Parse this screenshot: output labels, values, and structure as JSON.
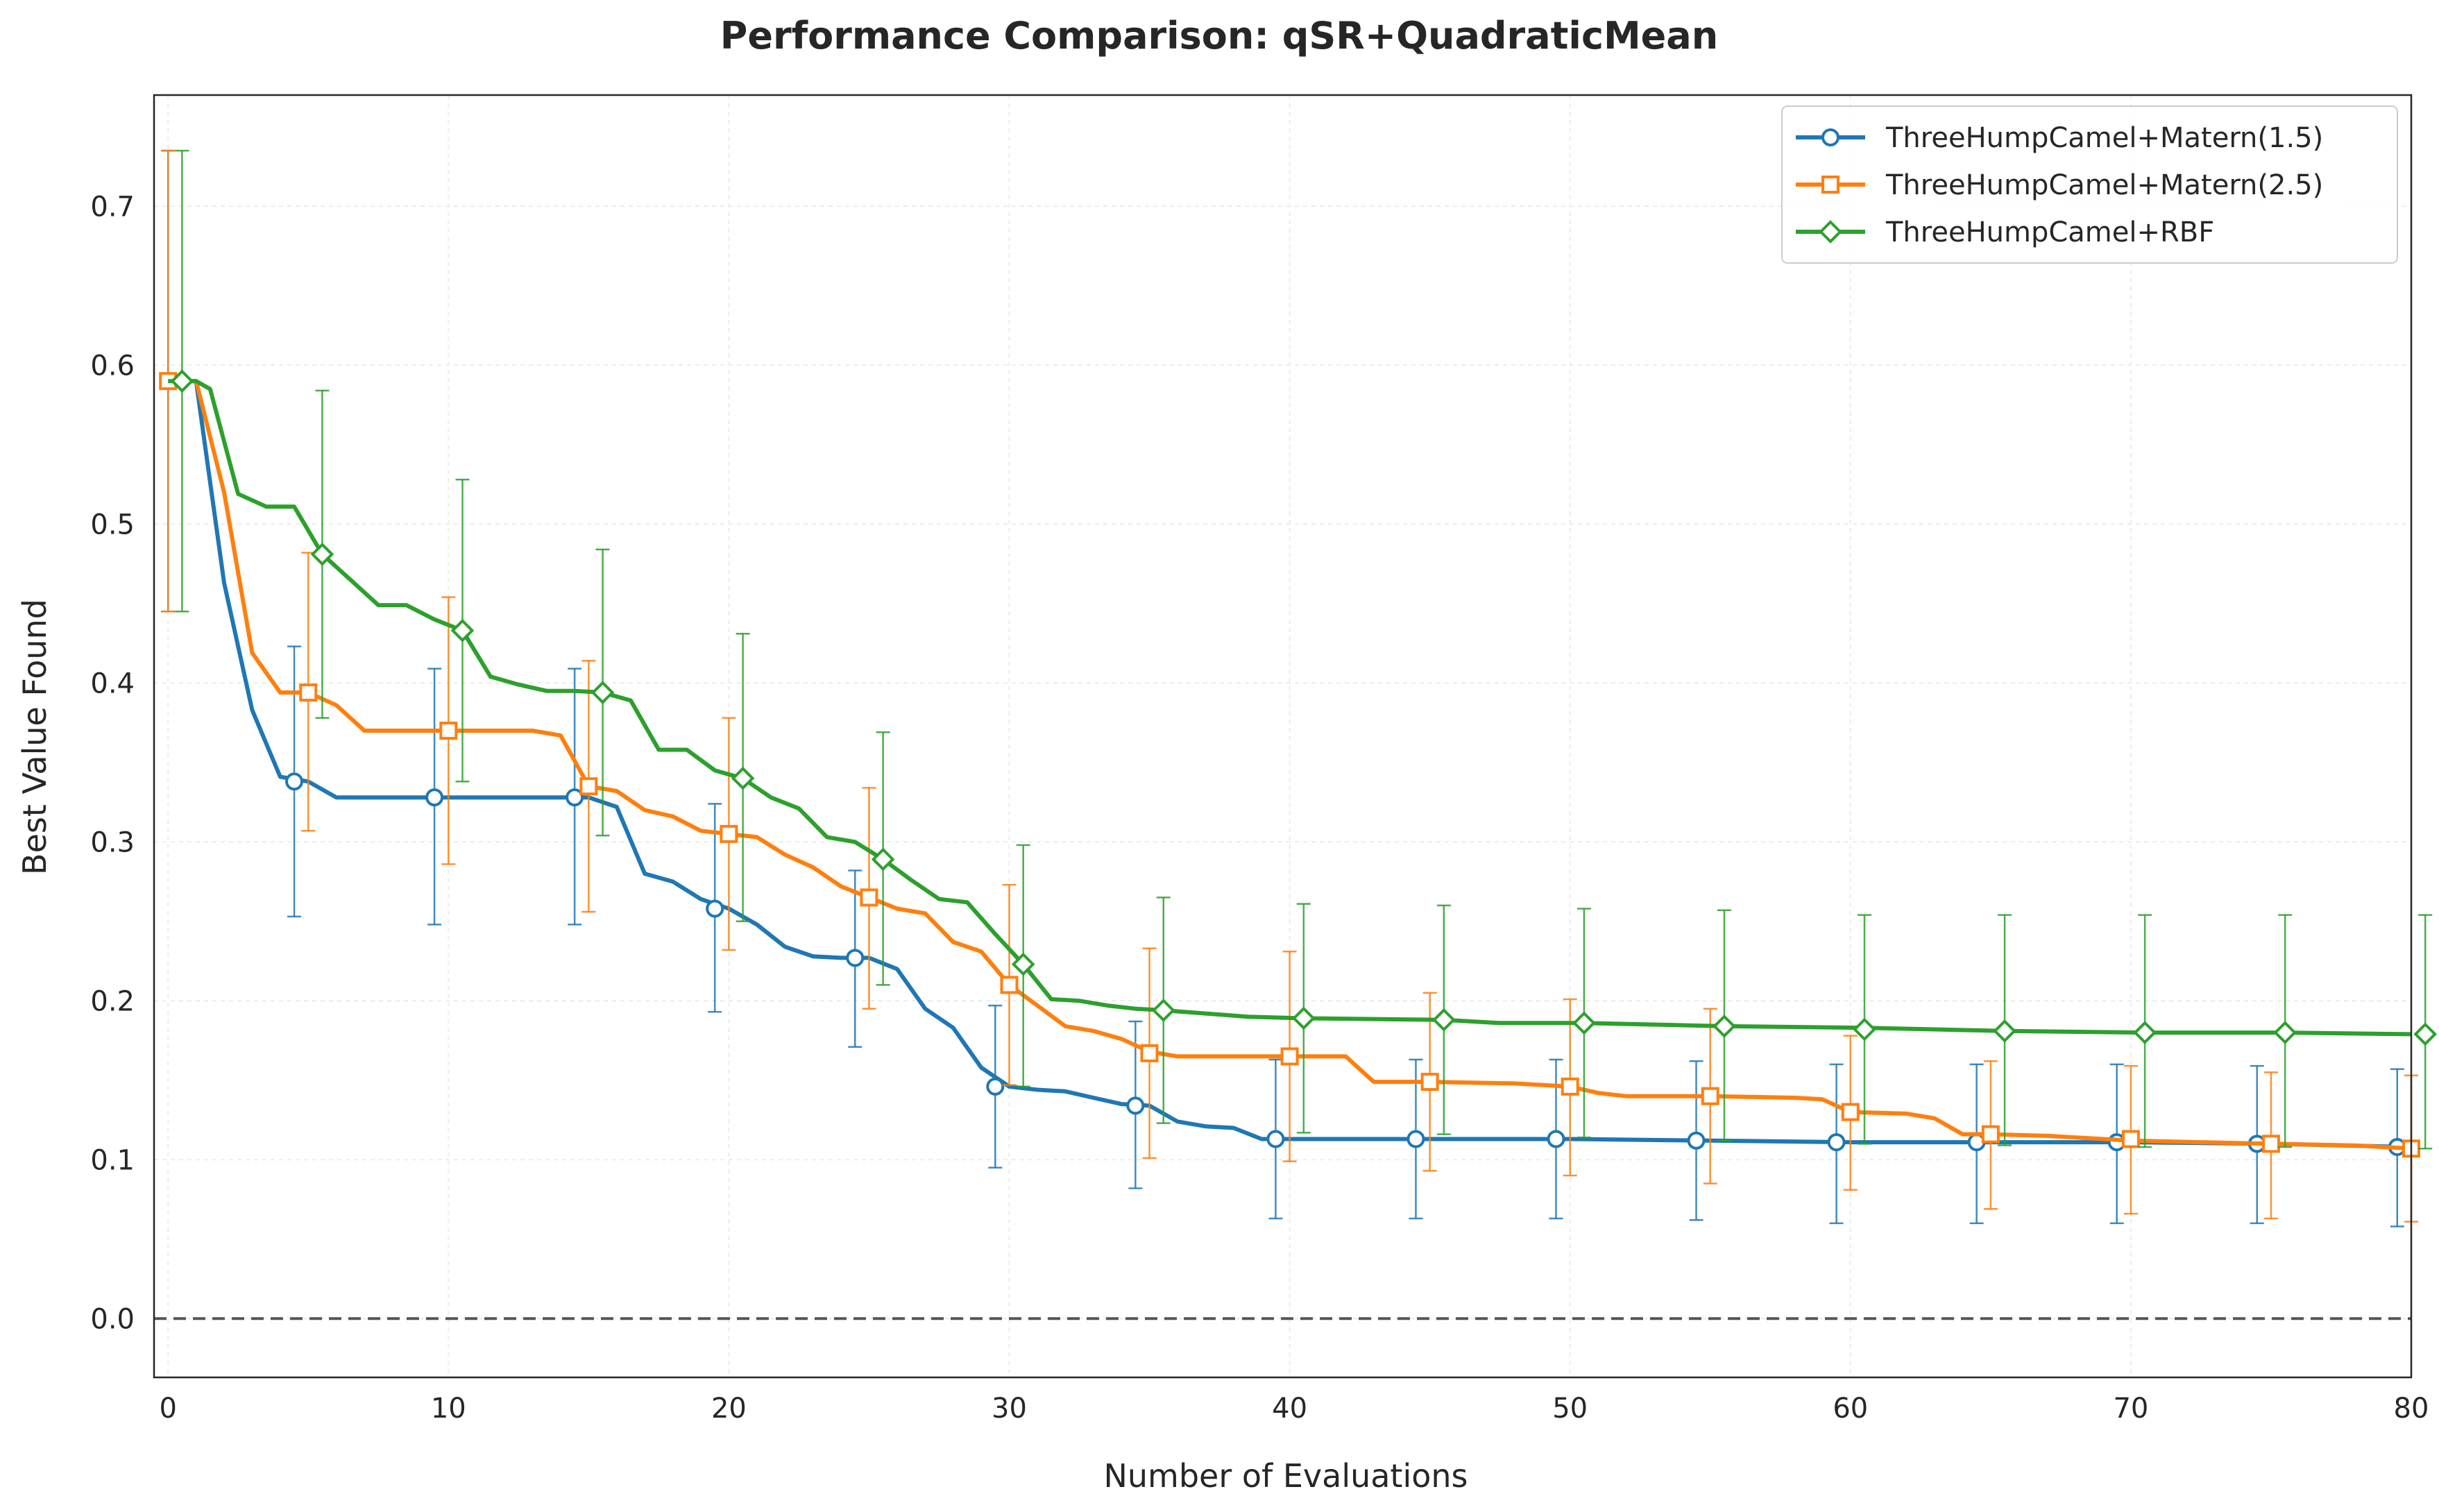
{
  "chart_data": {
    "type": "line",
    "title": "Performance Comparison: qSR+QuadraticMean",
    "xlabel": "Number of Evaluations",
    "ylabel": "Best Value Found",
    "xlim": [
      -0.5,
      80
    ],
    "ylim": [
      -0.037,
      0.77
    ],
    "xticks": [
      0,
      10,
      20,
      30,
      40,
      50,
      60,
      70,
      80
    ],
    "xtick_labels": [
      "0",
      "10",
      "20",
      "30",
      "40",
      "50",
      "60",
      "70",
      "80"
    ],
    "yticks": [
      0.0,
      0.1,
      0.2,
      0.3,
      0.4,
      0.5,
      0.6,
      0.7
    ],
    "ytick_labels": [
      "0.0",
      "0.1",
      "0.2",
      "0.3",
      "0.4",
      "0.5",
      "0.6",
      "0.7"
    ],
    "grid": true,
    "legend_position": "top-right",
    "reference_line": {
      "y": 0.0,
      "style": "dashed",
      "color": "#555555"
    },
    "series": [
      {
        "name": "ThreeHumpCamel+Matern(1.5)",
        "color": "#1f77b4",
        "marker": "circle",
        "x": [
          0,
          1,
          2,
          3,
          4,
          5,
          6,
          7,
          8,
          9,
          10,
          11,
          12,
          13,
          14,
          15,
          16,
          17,
          18,
          19,
          20,
          21,
          22,
          23,
          24,
          25,
          26,
          27,
          28,
          29,
          30,
          31,
          32,
          33,
          34,
          35,
          36,
          37,
          38,
          39,
          40,
          45,
          50,
          55,
          60,
          65,
          70,
          75,
          80
        ],
        "y": [
          0.59,
          0.59,
          0.463,
          0.383,
          0.341,
          0.338,
          0.328,
          0.328,
          0.328,
          0.328,
          0.328,
          0.328,
          0.328,
          0.328,
          0.328,
          0.328,
          0.322,
          0.28,
          0.275,
          0.264,
          0.258,
          0.248,
          0.234,
          0.228,
          0.227,
          0.227,
          0.22,
          0.195,
          0.183,
          0.158,
          0.146,
          0.144,
          0.143,
          0.139,
          0.135,
          0.134,
          0.124,
          0.121,
          0.12,
          0.113,
          0.113,
          0.113,
          0.113,
          0.112,
          0.111,
          0.111,
          0.111,
          0.11,
          0.108
        ],
        "marker_x": [
          0,
          4.5,
          9.5,
          14.5,
          19.5,
          24.5,
          29.5,
          34.5,
          39.5,
          44.5,
          49.5,
          54.5,
          59.5,
          64.5,
          69.5,
          74.5,
          79.5
        ],
        "marker_y": [
          0.59,
          0.338,
          0.328,
          0.328,
          0.258,
          0.227,
          0.146,
          0.134,
          0.113,
          0.113,
          0.113,
          0.112,
          0.111,
          0.111,
          0.111,
          0.11,
          0.108
        ],
        "err_low": [
          0.445,
          0.253,
          0.248,
          0.248,
          0.193,
          0.171,
          0.095,
          0.082,
          0.063,
          0.063,
          0.063,
          0.062,
          0.06,
          0.06,
          0.06,
          0.06,
          0.058
        ],
        "err_high": [
          0.735,
          0.423,
          0.409,
          0.409,
          0.324,
          0.282,
          0.197,
          0.187,
          0.163,
          0.163,
          0.163,
          0.162,
          0.16,
          0.16,
          0.16,
          0.159,
          0.157
        ]
      },
      {
        "name": "ThreeHumpCamel+Matern(2.5)",
        "color": "#ff7f0e",
        "marker": "square",
        "x": [
          0,
          1,
          2,
          3,
          4,
          5,
          6,
          7,
          8,
          9,
          10,
          11,
          12,
          13,
          14,
          15,
          16,
          17,
          18,
          19,
          20,
          21,
          22,
          23,
          24,
          25,
          26,
          27,
          28,
          29,
          30,
          31,
          32,
          33,
          34,
          35,
          36,
          40,
          42,
          43,
          45,
          48,
          50,
          51,
          52,
          55,
          58,
          59,
          60,
          62,
          63,
          64,
          65,
          67,
          70,
          75,
          78,
          80
        ],
        "y": [
          0.59,
          0.59,
          0.52,
          0.419,
          0.394,
          0.394,
          0.386,
          0.37,
          0.37,
          0.37,
          0.37,
          0.37,
          0.37,
          0.37,
          0.367,
          0.335,
          0.332,
          0.32,
          0.316,
          0.307,
          0.305,
          0.303,
          0.292,
          0.284,
          0.272,
          0.265,
          0.258,
          0.255,
          0.237,
          0.231,
          0.21,
          0.197,
          0.184,
          0.181,
          0.176,
          0.168,
          0.165,
          0.165,
          0.165,
          0.149,
          0.149,
          0.148,
          0.146,
          0.142,
          0.14,
          0.14,
          0.139,
          0.138,
          0.13,
          0.129,
          0.126,
          0.116,
          0.116,
          0.115,
          0.112,
          0.11,
          0.109,
          0.107
        ],
        "marker_x": [
          0,
          5,
          10,
          15,
          20,
          25,
          30,
          35,
          40,
          45,
          50,
          55,
          60,
          65,
          70,
          75,
          80
        ],
        "marker_y": [
          0.59,
          0.394,
          0.37,
          0.335,
          0.305,
          0.265,
          0.21,
          0.167,
          0.165,
          0.149,
          0.146,
          0.14,
          0.13,
          0.116,
          0.113,
          0.11,
          0.107
        ],
        "err_low": [
          0.445,
          0.307,
          0.286,
          0.256,
          0.232,
          0.195,
          0.147,
          0.101,
          0.099,
          0.093,
          0.09,
          0.085,
          0.081,
          0.069,
          0.066,
          0.063,
          0.061
        ],
        "err_high": [
          0.735,
          0.482,
          0.454,
          0.414,
          0.378,
          0.334,
          0.273,
          0.233,
          0.231,
          0.205,
          0.201,
          0.195,
          0.178,
          0.162,
          0.159,
          0.155,
          0.153
        ]
      },
      {
        "name": "ThreeHumpCamel+RBF",
        "color": "#2ca02c",
        "marker": "diamond",
        "x": [
          0,
          1,
          1.5,
          2.5,
          3.5,
          4.5,
          5.5,
          6.5,
          7.5,
          8.5,
          9.5,
          10.5,
          11.5,
          12.5,
          13.5,
          14.5,
          15.5,
          16.5,
          17.5,
          18.5,
          19.5,
          20.5,
          21.5,
          22.5,
          23.5,
          24.5,
          25.5,
          26.5,
          27.5,
          28.5,
          29.5,
          30.5,
          31.5,
          32.5,
          33.5,
          34.5,
          35.5,
          38.5,
          40.5,
          45.5,
          47.5,
          50.5,
          55.5,
          60.5,
          65.5,
          70.5,
          75.5,
          80
        ],
        "y": [
          0.59,
          0.59,
          0.585,
          0.519,
          0.511,
          0.511,
          0.481,
          0.465,
          0.449,
          0.449,
          0.44,
          0.433,
          0.404,
          0.399,
          0.395,
          0.395,
          0.394,
          0.389,
          0.358,
          0.358,
          0.345,
          0.34,
          0.328,
          0.321,
          0.303,
          0.3,
          0.289,
          0.276,
          0.264,
          0.262,
          0.242,
          0.223,
          0.201,
          0.2,
          0.197,
          0.195,
          0.194,
          0.19,
          0.189,
          0.188,
          0.186,
          0.186,
          0.184,
          0.183,
          0.181,
          0.18,
          0.18,
          0.179
        ],
        "marker_x": [
          0.5,
          5.5,
          10.5,
          15.5,
          20.5,
          25.5,
          30.5,
          35.5,
          40.5,
          45.5,
          50.5,
          55.5,
          60.5,
          65.5,
          70.5,
          75.5,
          80.5
        ],
        "marker_y": [
          0.59,
          0.481,
          0.433,
          0.394,
          0.34,
          0.289,
          0.223,
          0.194,
          0.189,
          0.188,
          0.186,
          0.184,
          0.182,
          0.181,
          0.18,
          0.18,
          0.179
        ],
        "err_low": [
          0.445,
          0.378,
          0.338,
          0.304,
          0.25,
          0.21,
          0.146,
          0.123,
          0.117,
          0.116,
          0.114,
          0.112,
          0.11,
          0.109,
          0.108,
          0.108,
          0.107
        ],
        "err_high": [
          0.735,
          0.584,
          0.528,
          0.484,
          0.431,
          0.369,
          0.298,
          0.265,
          0.261,
          0.26,
          0.258,
          0.257,
          0.254,
          0.254,
          0.254,
          0.254,
          0.254
        ]
      }
    ]
  }
}
